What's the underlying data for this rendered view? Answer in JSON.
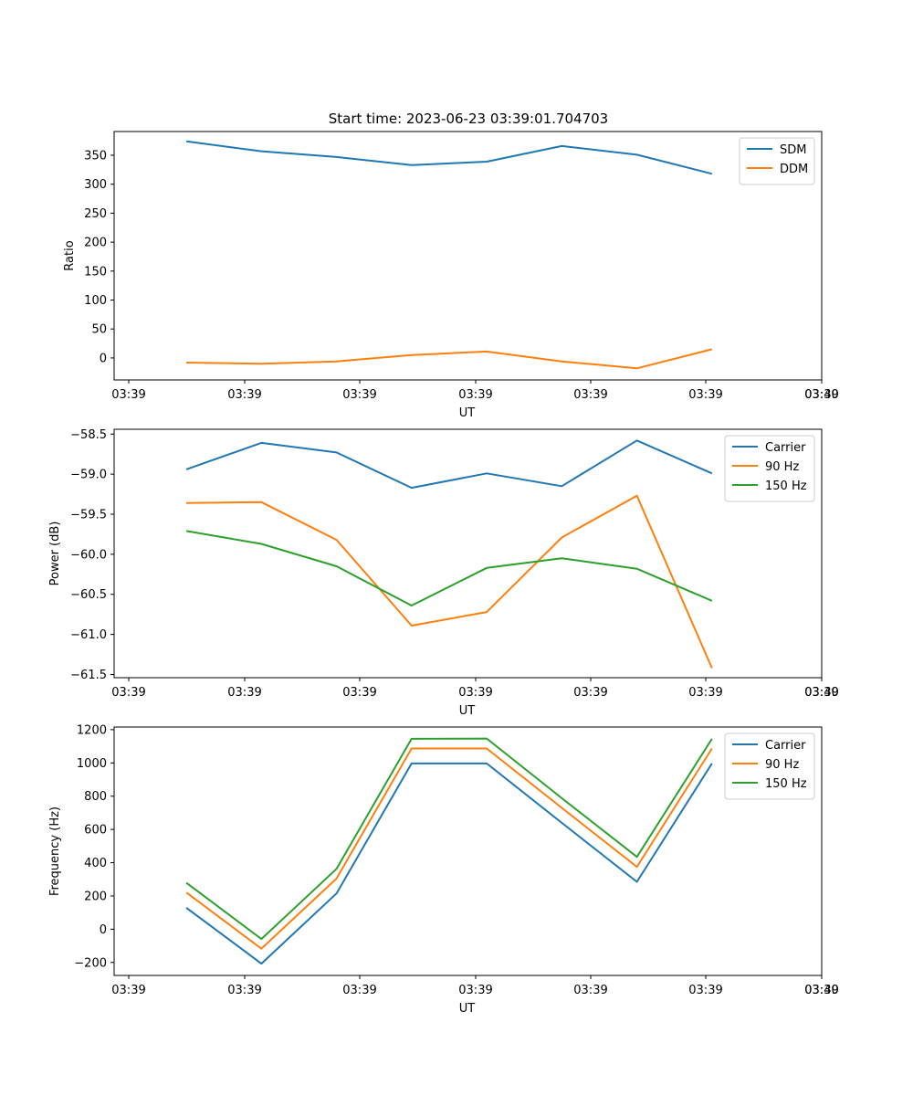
{
  "figure": {
    "title": "Start time: 2023-06-23 03:39:01.704703"
  },
  "chart_data": [
    {
      "type": "line",
      "xlabel": "UT",
      "ylabel": "Ratio",
      "xtick_labels": [
        "03:39",
        "03:39",
        "03:39",
        "03:39",
        "03:39",
        "03:39",
        "03:39",
        "03:40"
      ],
      "ylim": [
        -38,
        391
      ],
      "yticks": [
        0,
        50,
        100,
        150,
        200,
        250,
        300,
        350
      ],
      "legend_position": "top-right",
      "series": [
        {
          "name": "SDM",
          "color": "#1f77b4",
          "values": [
            374,
            357,
            347,
            333,
            339,
            366,
            351,
            318
          ]
        },
        {
          "name": "DDM",
          "color": "#ff7f0e",
          "values": [
            -8,
            -10,
            -6,
            5,
            11,
            -6,
            -18,
            15
          ]
        }
      ]
    },
    {
      "type": "line",
      "xlabel": "UT",
      "ylabel": "Power (dB)",
      "xtick_labels": [
        "03:39",
        "03:39",
        "03:39",
        "03:39",
        "03:39",
        "03:39",
        "03:39",
        "03:40"
      ],
      "ylim": [
        -61.54,
        -58.44
      ],
      "yticks": [
        -61.5,
        -61.0,
        -60.5,
        -60.0,
        -59.5,
        -59.0,
        -58.5
      ],
      "ytick_labels": [
        "−61.5",
        "−61.0",
        "−60.5",
        "−60.0",
        "−59.5",
        "−59.0",
        "−58.5"
      ],
      "legend_position": "top-right",
      "series": [
        {
          "name": "Carrier",
          "color": "#1f77b4",
          "values": [
            -58.94,
            -58.61,
            -58.73,
            -59.17,
            -58.99,
            -59.15,
            -58.58,
            -58.99
          ]
        },
        {
          "name": "90 Hz",
          "color": "#ff7f0e",
          "values": [
            -59.36,
            -59.35,
            -59.82,
            -60.89,
            -60.72,
            -59.79,
            -59.27,
            -61.42
          ]
        },
        {
          "name": "150 Hz",
          "color": "#2ca02c",
          "values": [
            -59.71,
            -59.87,
            -60.15,
            -60.64,
            -60.17,
            -60.05,
            -60.18,
            -60.58
          ]
        }
      ]
    },
    {
      "type": "line",
      "xlabel": "UT",
      "ylabel": "Frequency (Hz)",
      "xtick_labels": [
        "03:39",
        "03:39",
        "03:39",
        "03:39",
        "03:39",
        "03:39",
        "03:39",
        "03:40"
      ],
      "ylim": [
        -278,
        1216
      ],
      "yticks": [
        -200,
        0,
        200,
        400,
        600,
        800,
        1000,
        1200
      ],
      "ytick_labels": [
        "−200",
        "0",
        "200",
        "400",
        "600",
        "800",
        "1000",
        "1200"
      ],
      "legend_position": "top-right",
      "series": [
        {
          "name": "Carrier",
          "color": "#1f77b4",
          "values": [
            129,
            -207,
            215,
            997,
            997,
            640,
            285,
            997
          ]
        },
        {
          "name": "90 Hz",
          "color": "#ff7f0e",
          "values": [
            221,
            -117,
            305,
            1087,
            1087,
            730,
            375,
            1087
          ]
        },
        {
          "name": "150 Hz",
          "color": "#2ca02c",
          "values": [
            279,
            -59,
            363,
            1145,
            1147,
            788,
            435,
            1145
          ]
        }
      ]
    }
  ]
}
